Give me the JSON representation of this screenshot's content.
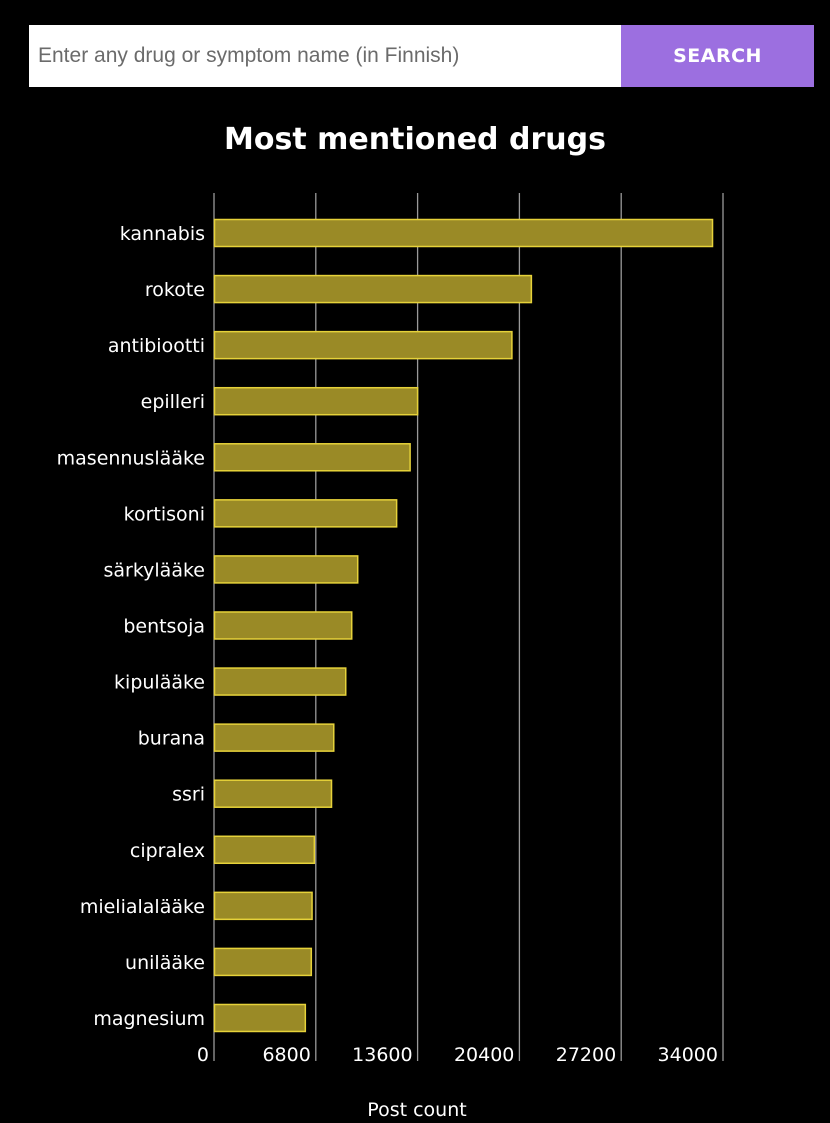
{
  "search": {
    "placeholder": "Enter any drug or symptom name (in Finnish)",
    "value": "",
    "button_label": "SEARCH",
    "button_color": "#9c6fe0"
  },
  "chart_data": {
    "type": "bar",
    "orientation": "horizontal",
    "title": "Most mentioned drugs",
    "xlabel": "Post count",
    "ylabel": "",
    "categories": [
      "kannabis",
      "rokote",
      "antibiootti",
      "epilleri",
      "masennuslääke",
      "kortisoni",
      "särkylääke",
      "bentsoja",
      "kipulääke",
      "burana",
      "ssri",
      "cipralex",
      "mielialalääke",
      "unilääke",
      "magnesium"
    ],
    "values": [
      33300,
      21200,
      19900,
      13600,
      13100,
      12200,
      9600,
      9200,
      8800,
      8000,
      7850,
      6700,
      6550,
      6500,
      6100
    ],
    "xticks": [
      0,
      6800,
      13600,
      20400,
      27200,
      34000
    ],
    "xlim": [
      0,
      34000
    ],
    "grid": "vertical",
    "bar_fill": "#9a8a26",
    "bar_stroke": "#e6d23a"
  }
}
